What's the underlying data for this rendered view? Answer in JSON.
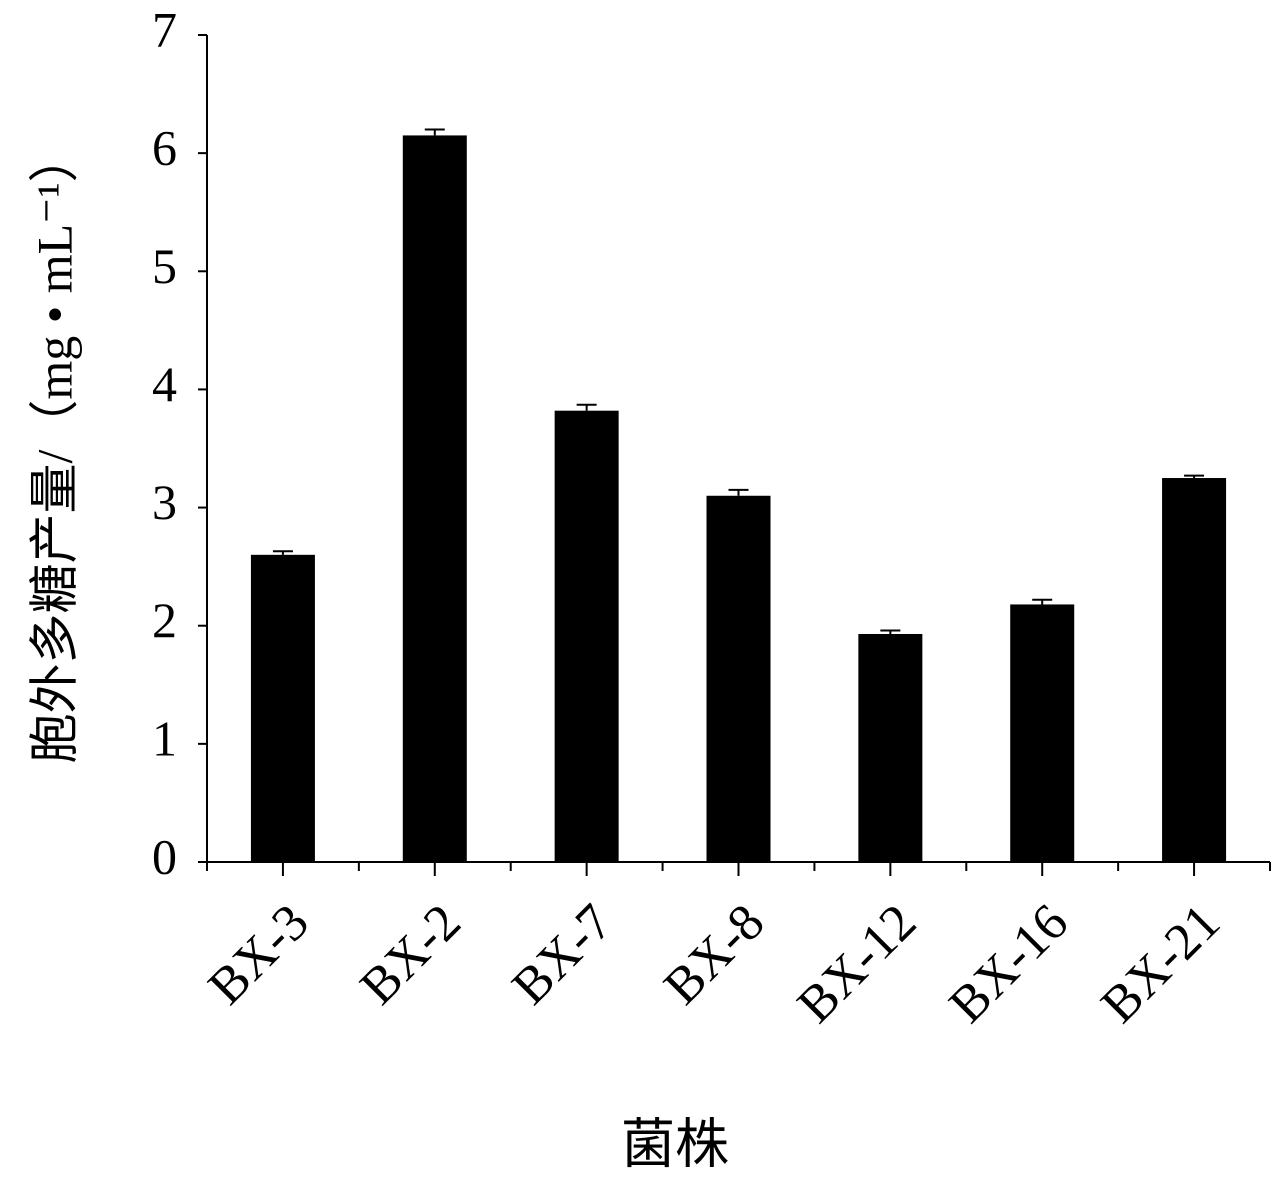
{
  "chart_data": {
    "type": "bar",
    "y_label": "胞外多糖产量/（mg • mL⁻¹）",
    "x_label": "菌株",
    "categories": [
      "BX-3",
      "BX-2",
      "BX-7",
      "BX-8",
      "BX-12",
      "BX-16",
      "BX-21"
    ],
    "values": [
      2.6,
      6.15,
      3.82,
      3.1,
      1.93,
      2.18,
      3.25
    ],
    "errors": [
      0.03,
      0.05,
      0.05,
      0.05,
      0.03,
      0.04,
      0.02
    ],
    "color": "#000000",
    "ylim": [
      0,
      7
    ],
    "yticks": [
      0,
      1,
      2,
      3,
      4,
      5,
      6,
      7
    ],
    "grid": false
  }
}
